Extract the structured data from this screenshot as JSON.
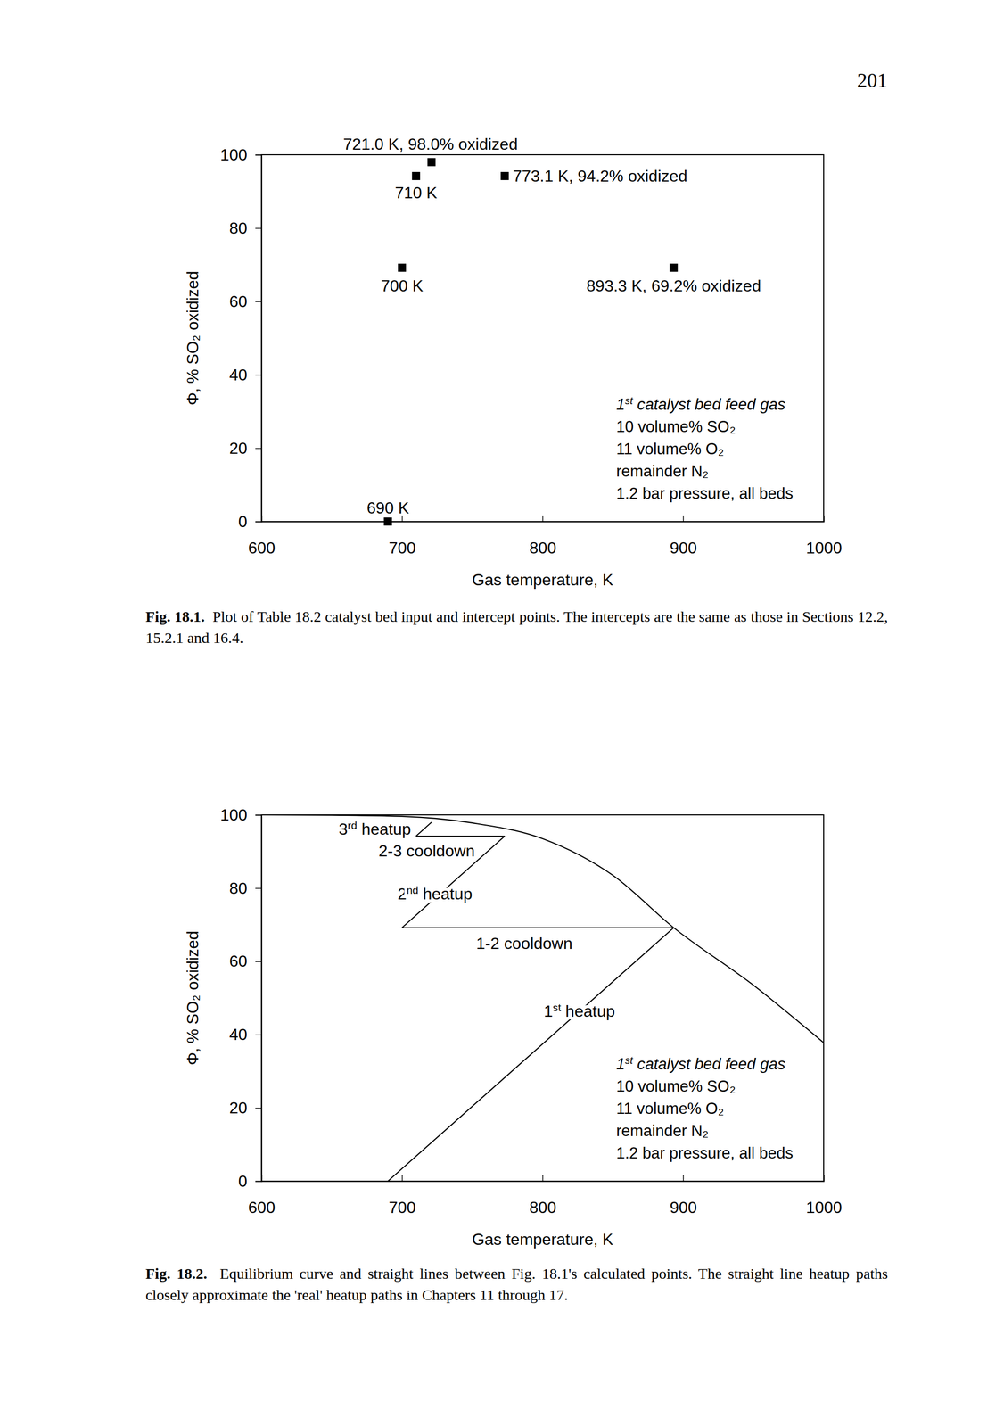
{
  "page_number": "201",
  "chart_data": [
    {
      "type": "scatter",
      "x": [
        690,
        700,
        710,
        721.0,
        773.1,
        893.3
      ],
      "values": [
        0,
        69.2,
        94.2,
        98.0,
        94.2,
        69.2
      ],
      "point_labels": [
        "690 K",
        "700 K",
        "710 K",
        "721.0 K, 98.0% oxidized",
        "773.1 K, 94.2% oxidized",
        "893.3 K, 69.2% oxidized"
      ],
      "marker": "square",
      "color": "#000000",
      "x_label": "Gas temperature, K",
      "y_label": "Φ, % SO₂ oxidized",
      "xlim": [
        600,
        1000
      ],
      "ylim": [
        0,
        100
      ],
      "xticks": [
        600,
        700,
        800,
        900,
        1000
      ],
      "yticks": [
        0,
        20,
        40,
        60,
        80,
        100
      ],
      "annotations": [
        "1st catalyst bed feed gas",
        "10 volume% SO₂",
        "11 volume% O₂",
        "remainder N₂",
        "1.2 bar pressure, all beds"
      ],
      "caption_label": "Fig. 18.1.",
      "caption": "Plot of Table 18.2 catalyst bed input and intercept points. The intercepts are the same as those in Sections 12.2, 15.2.1 and 16.4."
    },
    {
      "type": "line",
      "series": [
        {
          "color": "#000000",
          "x": [
            600,
            650,
            700,
            750,
            800,
            850,
            893.3,
            950,
            1000
          ],
          "values": [
            100,
            99.9,
            99.6,
            97.8,
            93.5,
            83.5,
            69.2,
            53.5,
            37.8
          ]
        },
        {
          "name": "1st heatup",
          "color": "#000000",
          "x": [
            690,
            893.3
          ],
          "values": [
            0,
            69.2
          ]
        },
        {
          "name": "1-2 cooldown",
          "color": "#000000",
          "x": [
            893.3,
            700
          ],
          "values": [
            69.2,
            69.2
          ]
        },
        {
          "name": "2nd heatup",
          "color": "#000000",
          "x": [
            700,
            773.1
          ],
          "values": [
            69.2,
            94.2
          ]
        },
        {
          "name": "2-3 cooldown",
          "color": "#000000",
          "x": [
            773.1,
            710
          ],
          "values": [
            94.2,
            94.2
          ]
        },
        {
          "name": "3rd heatup",
          "color": "#000000",
          "x": [
            710,
            721.0
          ],
          "values": [
            94.2,
            98.0
          ]
        }
      ],
      "x_label": "Gas temperature, K",
      "y_label": "Φ, % SO₂ oxidized",
      "xlim": [
        600,
        1000
      ],
      "ylim": [
        0,
        100
      ],
      "xticks": [
        600,
        700,
        800,
        900,
        1000
      ],
      "yticks": [
        0,
        20,
        40,
        60,
        80,
        100
      ],
      "annotations": [
        "1st catalyst bed feed gas",
        "10 volume% SO₂",
        "11 volume% O₂",
        "remainder N₂",
        "1.2 bar pressure, all beds"
      ],
      "caption_label": "Fig. 18.2.",
      "caption": "Equilibrium curve and straight lines between Fig. 18.1's calculated points. The straight line heatup paths closely approximate the 'real' heatup paths in Chapters 11 through 17."
    }
  ]
}
